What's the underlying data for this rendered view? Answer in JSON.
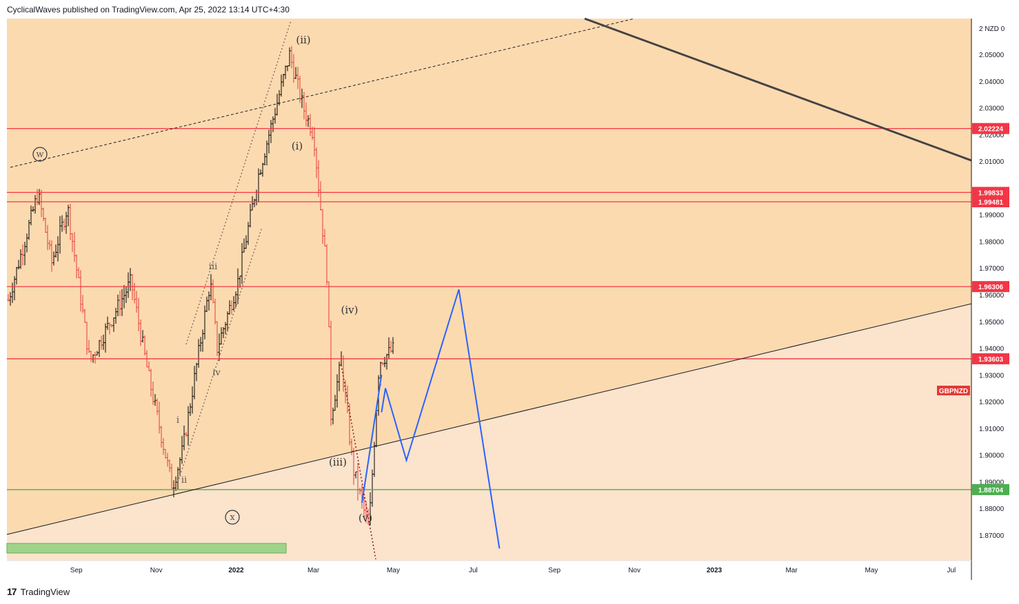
{
  "header": {
    "text": "CyclicalWaves published on TradingView.com, Apr 25, 2022 13:14 UTC+4:30"
  },
  "footer": {
    "logo": "17",
    "brand": "TradingView"
  },
  "chart_data": {
    "type": "line",
    "symbol": "GBPNZD",
    "currency_label": "2 NZD 0",
    "y_ticks": [
      "2.05000",
      "2.04000",
      "2.03000",
      "2.02000",
      "2.01000",
      "1.99000",
      "1.98000",
      "1.97000",
      "1.96000",
      "1.95000",
      "1.94000",
      "1.93000",
      "1.92000",
      "1.91000",
      "1.90000",
      "1.89000",
      "1.88000",
      "1.87000"
    ],
    "x_ticks": [
      "Sep",
      "Nov",
      "2022",
      "Mar",
      "May",
      "Jul",
      "Sep",
      "Nov",
      "2023",
      "Mar",
      "May",
      "Jul"
    ],
    "price_levels": [
      {
        "label": "2.02224",
        "value": 2.02224,
        "color": "#f23645"
      },
      {
        "label": "1.99833",
        "value": 1.99833,
        "color": "#f23645"
      },
      {
        "label": "1.99481",
        "value": 1.99481,
        "color": "#f23645"
      },
      {
        "label": "1.96306",
        "value": 1.96306,
        "color": "#f23645"
      },
      {
        "label": "1.93603",
        "value": 1.93603,
        "color": "#f23645"
      },
      {
        "label": "1.88704",
        "value": 1.88704,
        "color": "#4caf50"
      }
    ],
    "wave_labels": [
      {
        "text": "w",
        "circled": true
      },
      {
        "text": "x",
        "circled": true
      },
      {
        "text": "(ii)"
      },
      {
        "text": "(i)"
      },
      {
        "text": "(iv)"
      },
      {
        "text": "(iii)"
      },
      {
        "text": "(v)"
      },
      {
        "text": "iii",
        "small": true
      },
      {
        "text": "iv",
        "small": true
      },
      {
        "text": "i",
        "small": true
      },
      {
        "text": "ii",
        "small": true
      }
    ],
    "projection_path": [
      {
        "x": "2022-04-22",
        "y": 1.916
      },
      {
        "x": "2022-04-25",
        "y": 1.925
      },
      {
        "x": "2022-05-11",
        "y": 1.898
      },
      {
        "x": "2022-06-20",
        "y": 1.962
      },
      {
        "x": "2022-07-21",
        "y": 1.865
      }
    ],
    "colors": {
      "bull": "#000000",
      "bear": "#e53935",
      "projection": "#2962ff",
      "bg_upper": "#fcdbb2",
      "bg_lower": "#fbe4cd"
    }
  }
}
